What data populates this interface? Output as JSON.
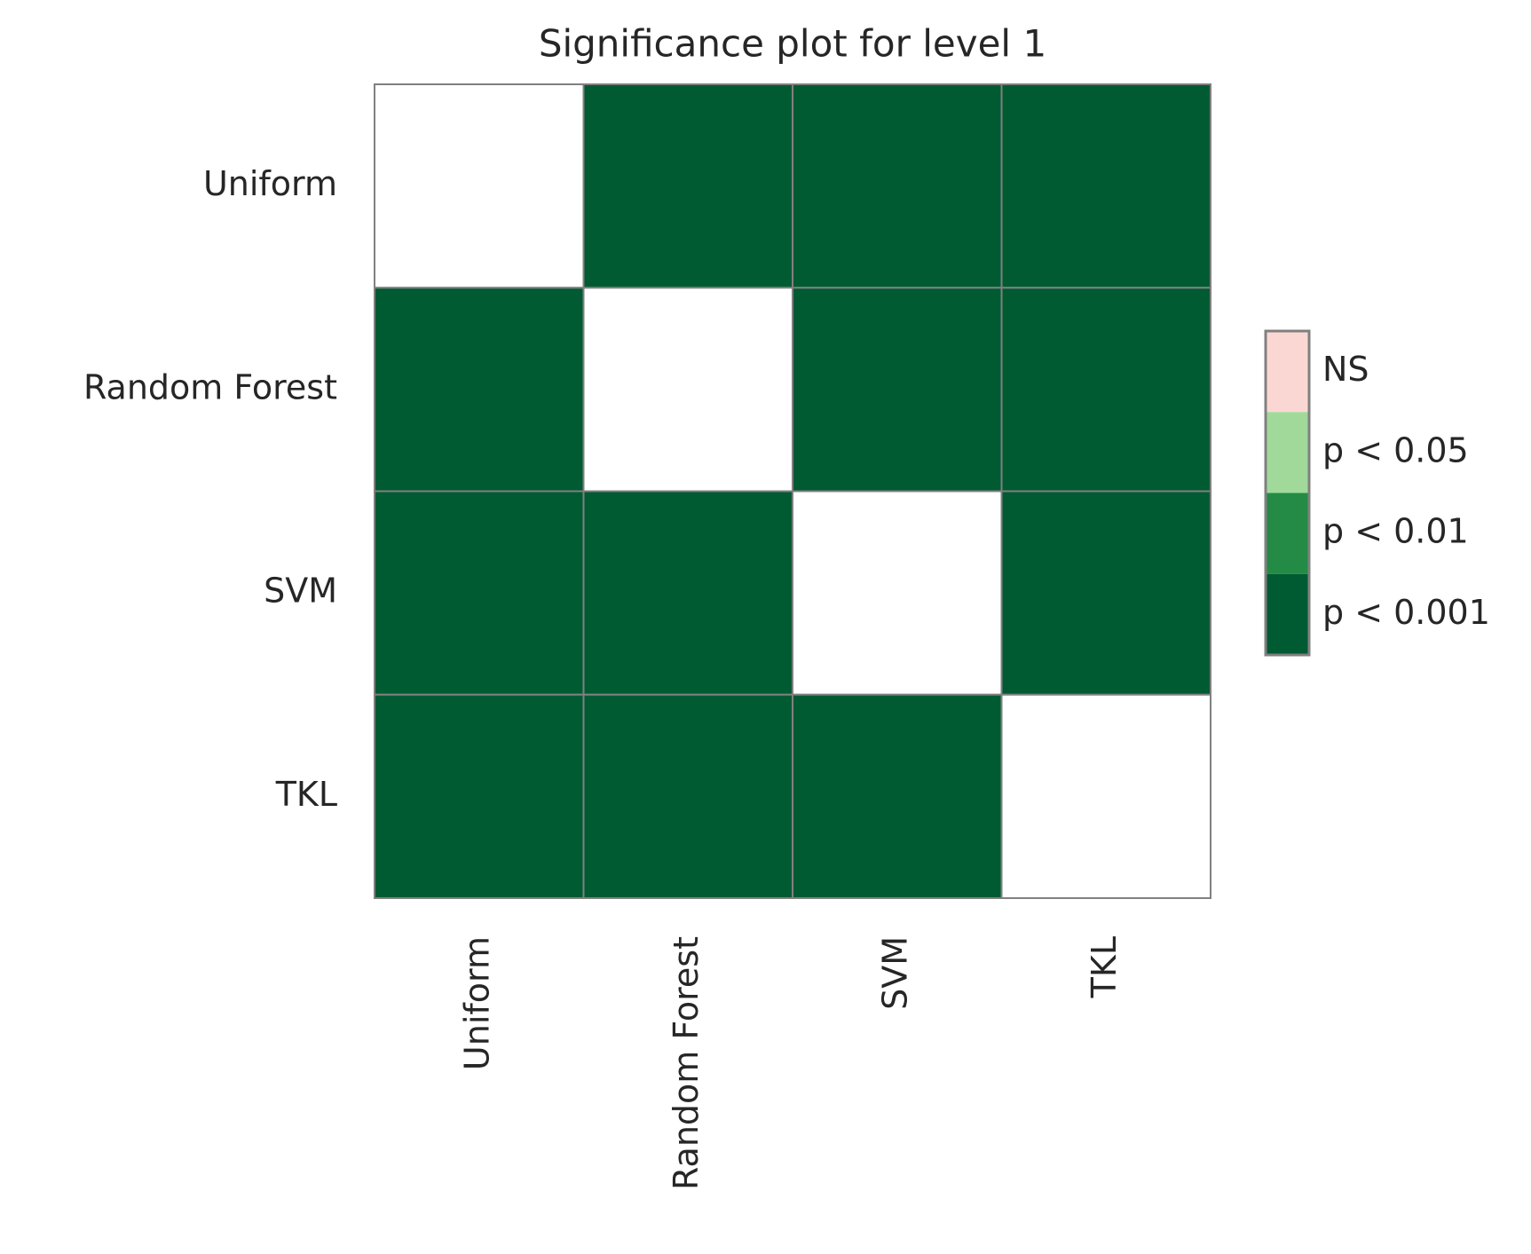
{
  "chart_data": {
    "type": "heatmap",
    "title": "Significance plot for level 1",
    "rows": [
      "Uniform",
      "Random Forest",
      "SVM",
      "TKL"
    ],
    "columns": [
      "Uniform",
      "Random Forest",
      "SVM",
      "TKL"
    ],
    "legend": [
      {
        "label": "NS",
        "color": "#fbd7d4"
      },
      {
        "label": "p < 0.05",
        "color": "#a1d99b"
      },
      {
        "label": "p < 0.01",
        "color": "#238b45"
      },
      {
        "label": "p < 0.001",
        "color": "#005a32"
      }
    ],
    "values": [
      [
        null,
        3,
        3,
        3
      ],
      [
        3,
        null,
        3,
        3
      ],
      [
        3,
        3,
        null,
        3
      ],
      [
        3,
        3,
        3,
        null
      ]
    ]
  }
}
